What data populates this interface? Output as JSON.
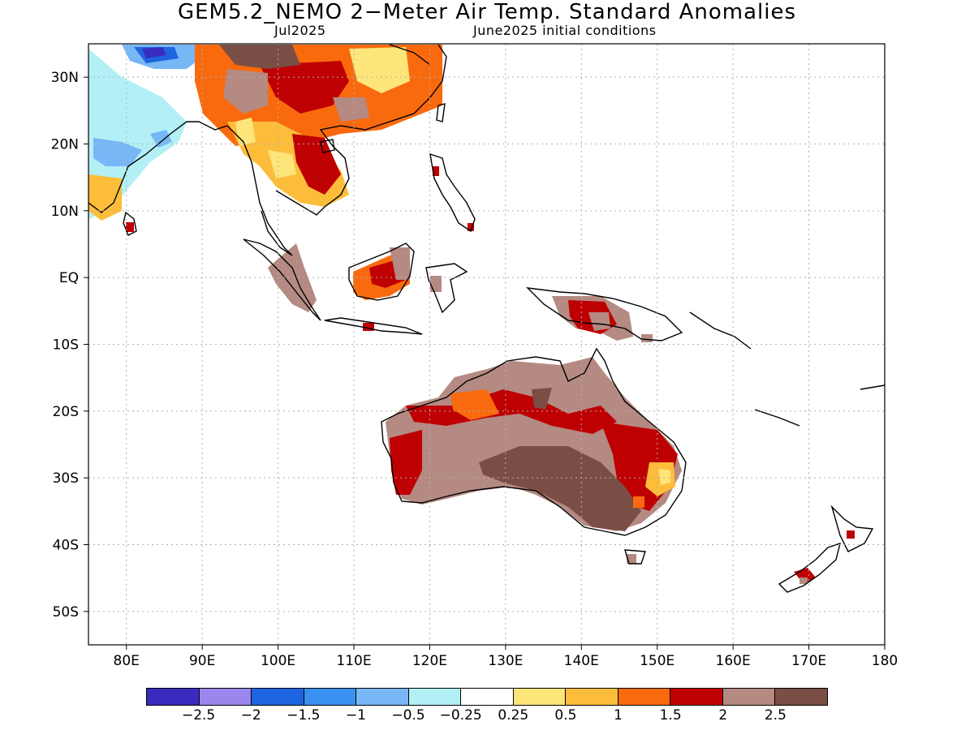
{
  "title": "GEM5.2_NEMO 2−Meter Air Temp. Standard Anomalies",
  "subtitle_left": "Jul2025",
  "subtitle_right": "June2025 initial conditions",
  "axes": {
    "lon_ticks": [
      "80E",
      "90E",
      "100E",
      "110E",
      "120E",
      "130E",
      "140E",
      "150E",
      "160E",
      "170E",
      "180"
    ],
    "lat_ticks": [
      "30N",
      "20N",
      "10N",
      "EQ",
      "10S",
      "20S",
      "30S",
      "40S",
      "50S"
    ],
    "lon_values": [
      80,
      90,
      100,
      110,
      120,
      130,
      140,
      150,
      160,
      170,
      180
    ],
    "lat_values": [
      30,
      20,
      10,
      0,
      -10,
      -20,
      -30,
      -40,
      -50
    ],
    "lon_range": [
      75,
      180
    ],
    "lat_range": [
      -55,
      35
    ],
    "grid": true
  },
  "legend": {
    "colors": [
      "#3a2bbf",
      "#9b86ee",
      "#1e64e0",
      "#3b91ef",
      "#78b7f6",
      "#b2f0f6",
      "#ffffff",
      "#fde57a",
      "#fdbd3a",
      "#f96a0e",
      "#bf0003",
      "#b48a82",
      "#7a4e44"
    ],
    "labels": [
      "−2.5",
      "−2",
      "−1.5",
      "−1",
      "−0.5",
      "−0.25",
      "0.25",
      "0.5",
      "1",
      "1.5",
      "2",
      "2.5"
    ]
  }
}
